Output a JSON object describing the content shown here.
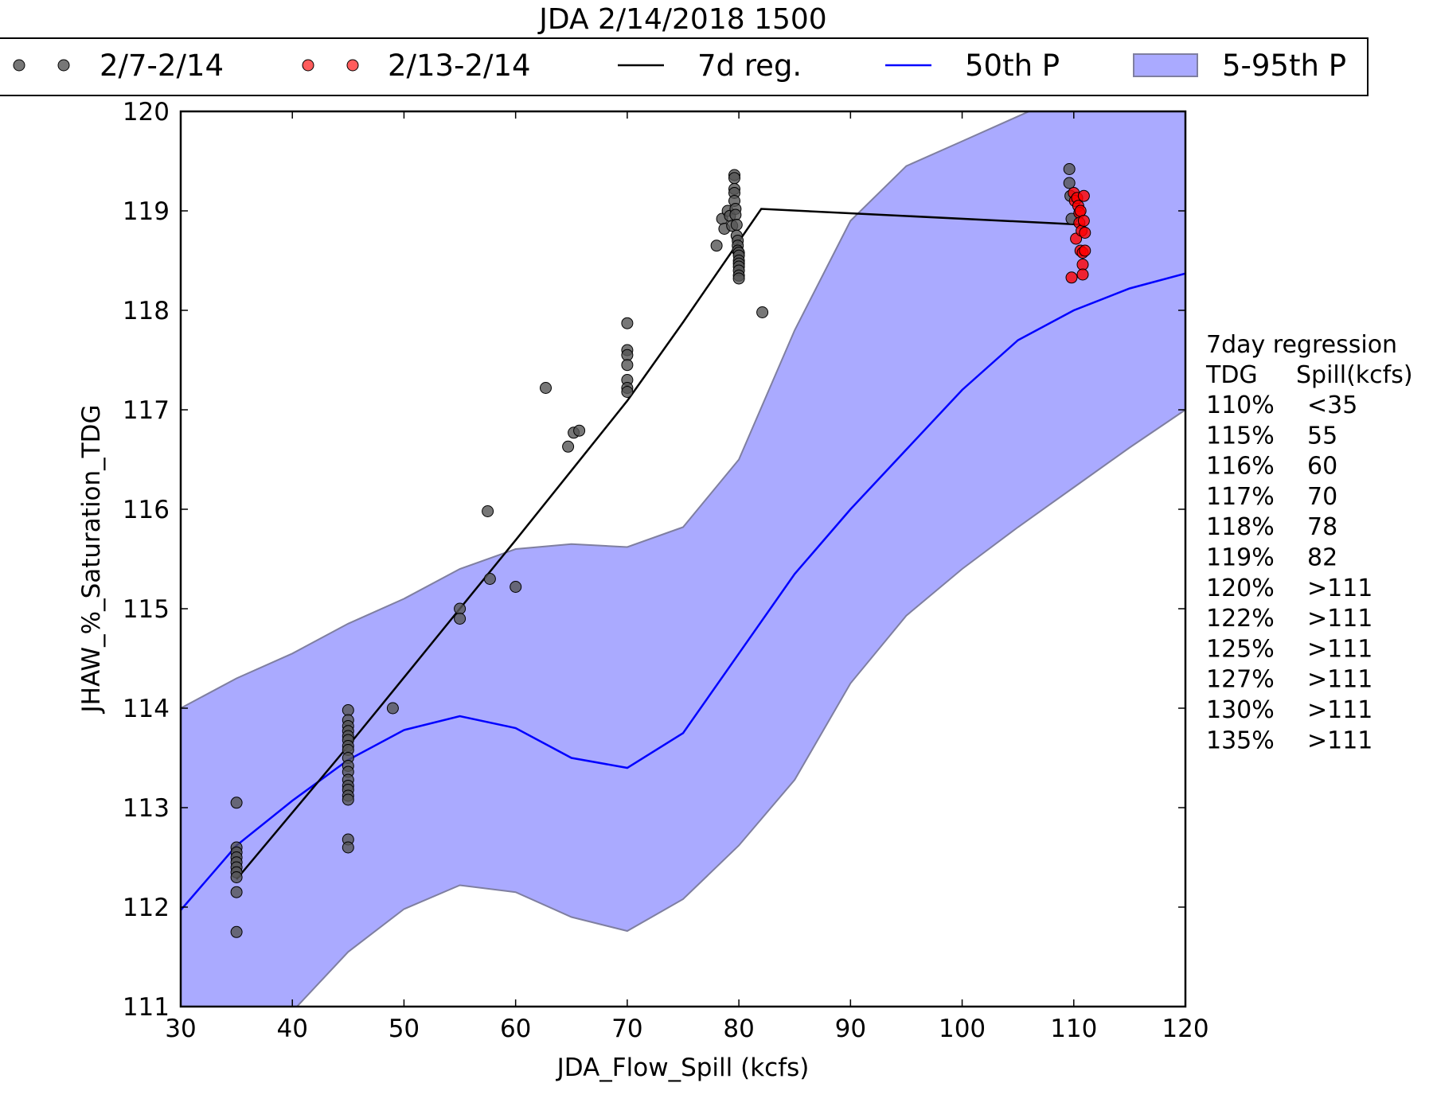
{
  "chart_data": {
    "type": "scatter",
    "title": "JDA 2/14/2018 1500",
    "xlabel": "JDA_Flow_Spill (kcfs)",
    "ylabel": "JHAW_%_Saturation_TDG",
    "xlim": [
      30,
      120
    ],
    "ylim": [
      111,
      120
    ],
    "x_ticks": [
      "30",
      "40",
      "50",
      "60",
      "70",
      "80",
      "90",
      "100",
      "110",
      "120"
    ],
    "y_ticks": [
      "111",
      "112",
      "113",
      "114",
      "115",
      "116",
      "117",
      "118",
      "119",
      "120"
    ],
    "grid": false,
    "legend_position": "top (above plot)",
    "legend": [
      "2/7-2/14",
      "2/13-2/14",
      "7d reg.",
      "50th P",
      "5-95th P"
    ],
    "colors": {
      "grey_points": "#555555",
      "red_points": "#ff0000",
      "regression_line": "#000000",
      "median_line": "#0000ff",
      "band_fill": "#aaaaff",
      "band_edge": "#7f7fa0"
    },
    "series": [
      {
        "name": "2/7-2/14",
        "kind": "points",
        "points": [
          [
            35,
            113.05
          ],
          [
            35,
            112.6
          ],
          [
            35,
            112.55
          ],
          [
            35,
            112.5
          ],
          [
            35,
            112.45
          ],
          [
            35,
            112.4
          ],
          [
            35,
            112.35
          ],
          [
            35,
            112.3
          ],
          [
            35,
            112.15
          ],
          [
            35,
            111.75
          ],
          [
            45,
            113.98
          ],
          [
            45,
            113.88
          ],
          [
            45,
            113.82
          ],
          [
            45,
            113.77
          ],
          [
            45,
            113.72
          ],
          [
            45,
            113.68
          ],
          [
            45,
            113.62
          ],
          [
            45,
            113.58
          ],
          [
            45,
            113.5
          ],
          [
            45,
            113.42
          ],
          [
            45,
            113.36
          ],
          [
            45,
            113.28
          ],
          [
            45,
            113.22
          ],
          [
            45,
            113.18
          ],
          [
            45,
            113.12
          ],
          [
            45,
            113.08
          ],
          [
            45,
            112.68
          ],
          [
            45,
            112.6
          ],
          [
            49,
            114.0
          ],
          [
            55,
            115.0
          ],
          [
            55,
            114.9
          ],
          [
            57.5,
            115.98
          ],
          [
            57.7,
            115.3
          ],
          [
            60,
            115.22
          ],
          [
            62.7,
            117.22
          ],
          [
            64.7,
            116.63
          ],
          [
            65.2,
            116.77
          ],
          [
            65.7,
            116.79
          ],
          [
            70,
            117.87
          ],
          [
            70,
            117.6
          ],
          [
            70,
            117.55
          ],
          [
            70,
            117.45
          ],
          [
            70,
            117.3
          ],
          [
            70,
            117.22
          ],
          [
            70,
            117.18
          ],
          [
            78,
            118.65
          ],
          [
            78.5,
            118.92
          ],
          [
            78.7,
            118.82
          ],
          [
            79,
            119.0
          ],
          [
            79.2,
            118.95
          ],
          [
            79.4,
            118.85
          ],
          [
            79.6,
            119.36
          ],
          [
            79.6,
            119.33
          ],
          [
            79.6,
            119.22
          ],
          [
            79.6,
            119.18
          ],
          [
            79.6,
            119.1
          ],
          [
            79.7,
            119.02
          ],
          [
            79.7,
            118.96
          ],
          [
            79.8,
            118.86
          ],
          [
            79.8,
            118.75
          ],
          [
            79.9,
            118.7
          ],
          [
            79.9,
            118.65
          ],
          [
            79.9,
            118.6
          ],
          [
            80,
            118.58
          ],
          [
            80,
            118.55
          ],
          [
            80,
            118.5
          ],
          [
            80,
            118.47
          ],
          [
            80,
            118.44
          ],
          [
            80,
            118.4
          ],
          [
            80,
            118.35
          ],
          [
            80,
            118.32
          ],
          [
            82.1,
            117.98
          ],
          [
            109.6,
            119.42
          ],
          [
            109.6,
            119.28
          ],
          [
            109.7,
            119.15
          ],
          [
            109.8,
            118.92
          ]
        ]
      },
      {
        "name": "2/13-2/14",
        "kind": "points",
        "points": [
          [
            109.8,
            118.33
          ],
          [
            110,
            119.18
          ],
          [
            110.1,
            119.1
          ],
          [
            110.2,
            118.72
          ],
          [
            110.3,
            119.13
          ],
          [
            110.4,
            119.05
          ],
          [
            110.5,
            118.98
          ],
          [
            110.5,
            118.88
          ],
          [
            110.6,
            119.0
          ],
          [
            110.6,
            118.6
          ],
          [
            110.7,
            118.8
          ],
          [
            110.8,
            118.58
          ],
          [
            110.8,
            118.46
          ],
          [
            110.8,
            118.36
          ],
          [
            110.9,
            119.15
          ],
          [
            110.9,
            118.9
          ],
          [
            111,
            118.78
          ],
          [
            111,
            118.6
          ]
        ]
      },
      {
        "name": "7d reg.",
        "kind": "line",
        "x": [
          35,
          45,
          49,
          55,
          60,
          65,
          70,
          75,
          82,
          111
        ],
        "y": [
          112.28,
          113.62,
          114.17,
          115.0,
          115.69,
          116.39,
          117.09,
          117.88,
          119.02,
          118.86
        ]
      },
      {
        "name": "50th P",
        "kind": "line",
        "x": [
          30,
          35,
          40,
          45,
          50,
          55,
          60,
          65,
          70,
          75,
          80,
          85,
          90,
          95,
          100,
          105,
          110,
          115,
          120
        ],
        "y": [
          111.97,
          112.62,
          113.07,
          113.48,
          113.78,
          113.92,
          113.8,
          113.5,
          113.4,
          113.75,
          114.55,
          115.35,
          116.0,
          116.6,
          117.2,
          117.7,
          118.0,
          118.22,
          118.37
        ]
      },
      {
        "name": "5-95th P",
        "kind": "band",
        "x": [
          30,
          35,
          40,
          45,
          50,
          55,
          60,
          65,
          70,
          75,
          80,
          85,
          90,
          95,
          100,
          105,
          110,
          115,
          120
        ],
        "upper": [
          114.0,
          114.3,
          114.55,
          114.85,
          115.1,
          115.4,
          115.6,
          115.65,
          115.62,
          115.82,
          116.5,
          117.8,
          118.9,
          119.45,
          119.7,
          119.95,
          120.2,
          120.45,
          120.7
        ],
        "lower": [
          110.05,
          110.52,
          110.95,
          111.55,
          111.98,
          112.22,
          112.15,
          111.9,
          111.76,
          112.08,
          112.62,
          113.28,
          114.25,
          114.93,
          115.4,
          115.82,
          116.22,
          116.62,
          117.0
        ]
      }
    ]
  },
  "side_panel": {
    "title": "7day regression",
    "col_tdg": "TDG",
    "col_spill": "Spill(kcfs)",
    "rows": [
      {
        "tdg": "110%",
        "spill": "<35"
      },
      {
        "tdg": "115%",
        "spill": "55"
      },
      {
        "tdg": "116%",
        "spill": "60"
      },
      {
        "tdg": "117%",
        "spill": "70"
      },
      {
        "tdg": "118%",
        "spill": "78"
      },
      {
        "tdg": "119%",
        "spill": "82"
      },
      {
        "tdg": "120%",
        "spill": ">111"
      },
      {
        "tdg": "122%",
        "spill": ">111"
      },
      {
        "tdg": "125%",
        "spill": ">111"
      },
      {
        "tdg": "127%",
        "spill": ">111"
      },
      {
        "tdg": "130%",
        "spill": ">111"
      },
      {
        "tdg": "135%",
        "spill": ">111"
      }
    ]
  }
}
